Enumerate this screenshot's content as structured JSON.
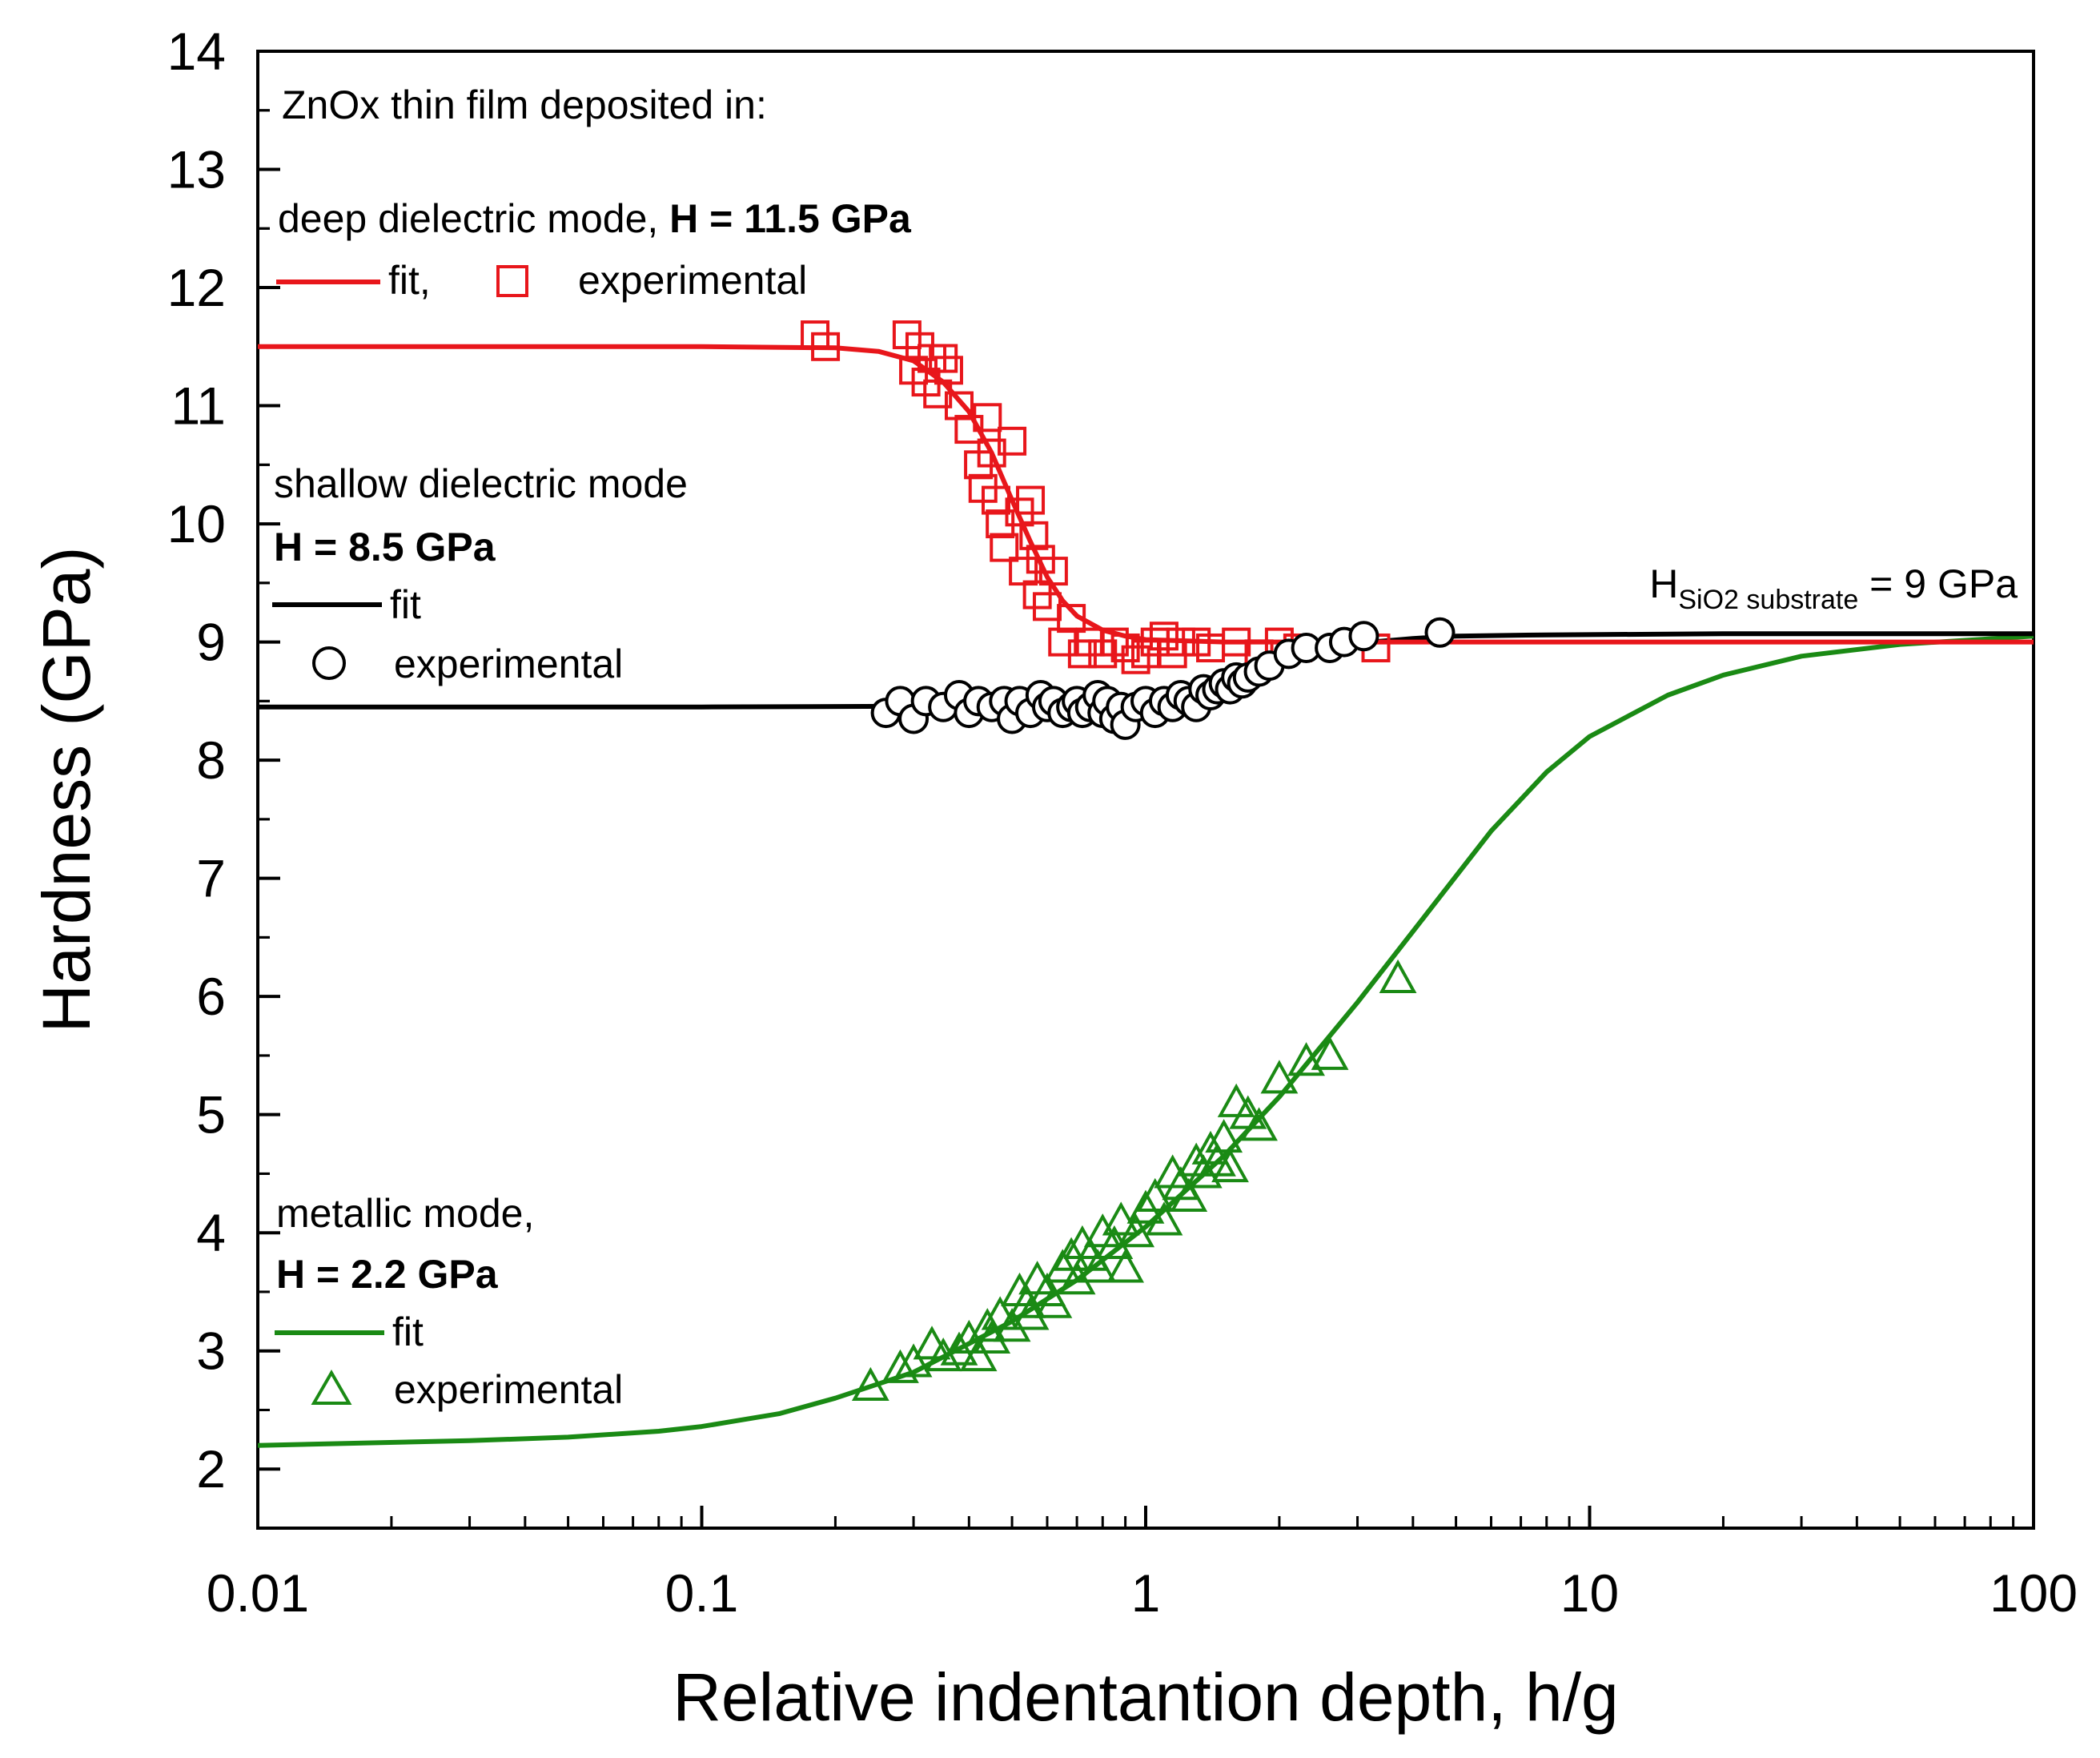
{
  "chart_data": {
    "type": "scatter",
    "title": "",
    "xlabel": "Relative indentantion depth, h/g",
    "ylabel": "Hardness (GPa)",
    "xscale": "log",
    "xlim": [
      0.01,
      100
    ],
    "ylim": [
      1.5,
      14
    ],
    "xticks": [
      0.01,
      0.1,
      1,
      10,
      100
    ],
    "xtick_labels": [
      "0.01",
      "0.1",
      "1",
      "10",
      "100"
    ],
    "yticks": [
      2,
      3,
      4,
      5,
      6,
      7,
      8,
      9,
      10,
      11,
      12,
      13,
      14
    ],
    "ytick_labels": [
      "2",
      "3",
      "4",
      "5",
      "6",
      "7",
      "8",
      "9",
      "10",
      "11",
      "12",
      "13",
      "14"
    ],
    "legend_header": "ZnOx thin film deposited in:",
    "substrate_annotation": {
      "main": "H",
      "subscript": "SiO2 substrate",
      "suffix": " = 9 GPa"
    },
    "series": [
      {
        "name": "deep dielectric mode",
        "color": "#e8161b",
        "marker": "square",
        "legend": {
          "title": "deep dielectric mode, ",
          "title_bold": "H = 11.5 GPa",
          "fit_label": "fit,",
          "exp_label": "experimental"
        },
        "fit": {
          "x": [
            0.01,
            0.1,
            0.2,
            0.25,
            0.3,
            0.35,
            0.4,
            0.45,
            0.5,
            0.55,
            0.6,
            0.65,
            0.7,
            0.8,
            0.9,
            1.0,
            1.5,
            2,
            5,
            100
          ],
          "y": [
            11.5,
            11.5,
            11.49,
            11.46,
            11.38,
            11.2,
            10.95,
            10.6,
            10.2,
            9.85,
            9.55,
            9.35,
            9.22,
            9.1,
            9.05,
            9.02,
            9.0,
            9.0,
            9.0,
            9.0
          ]
        },
        "experimental": {
          "x": [
            0.18,
            0.19,
            0.29,
            0.3,
            0.31,
            0.32,
            0.33,
            0.34,
            0.35,
            0.36,
            0.38,
            0.4,
            0.42,
            0.43,
            0.44,
            0.45,
            0.46,
            0.47,
            0.48,
            0.5,
            0.52,
            0.53,
            0.55,
            0.56,
            0.57,
            0.58,
            0.6,
            0.62,
            0.65,
            0.68,
            0.72,
            0.75,
            0.8,
            0.85,
            0.9,
            0.95,
            1.0,
            1.05,
            1.1,
            1.15,
            1.2,
            1.3,
            1.4,
            1.6,
            1.8,
            2.0,
            2.2,
            3.3
          ],
          "y": [
            11.6,
            11.5,
            11.6,
            11.3,
            11.5,
            11.2,
            11.4,
            11.1,
            11.4,
            11.3,
            11.0,
            10.8,
            10.5,
            10.3,
            10.9,
            10.6,
            10.2,
            10.0,
            9.8,
            10.7,
            10.1,
            9.6,
            10.2,
            9.9,
            9.4,
            9.7,
            9.3,
            9.6,
            9.0,
            9.2,
            8.9,
            9.0,
            8.9,
            9.0,
            8.95,
            8.85,
            8.9,
            9.0,
            9.05,
            8.9,
            9.0,
            9.0,
            8.95,
            9.0,
            8.9,
            9.0,
            8.95,
            8.95
          ]
        }
      },
      {
        "name": "shallow dielectric mode",
        "color": "#000000",
        "marker": "circle",
        "legend": {
          "title": "shallow dielectric mode",
          "title_bold": "H = 8.5 GPa",
          "fit_label": "fit",
          "exp_label": "experimental"
        },
        "fit": {
          "x": [
            0.01,
            0.1,
            0.5,
            0.8,
            1.0,
            1.3,
            1.6,
            2.0,
            2.5,
            3.0,
            4.0,
            5.0,
            8.0,
            20,
            100
          ],
          "y": [
            8.45,
            8.45,
            8.46,
            8.48,
            8.5,
            8.58,
            8.68,
            8.82,
            8.93,
            8.99,
            9.03,
            9.05,
            9.06,
            9.07,
            9.07
          ]
        },
        "experimental": {
          "x": [
            0.26,
            0.28,
            0.3,
            0.32,
            0.35,
            0.38,
            0.4,
            0.42,
            0.45,
            0.48,
            0.5,
            0.52,
            0.55,
            0.58,
            0.6,
            0.62,
            0.65,
            0.68,
            0.7,
            0.72,
            0.75,
            0.78,
            0.8,
            0.82,
            0.85,
            0.88,
            0.9,
            0.95,
            1.0,
            1.05,
            1.1,
            1.15,
            1.2,
            1.25,
            1.3,
            1.35,
            1.4,
            1.45,
            1.5,
            1.55,
            1.6,
            1.65,
            1.7,
            1.8,
            1.9,
            2.1,
            2.3,
            2.6,
            2.8,
            3.1,
            4.6
          ],
          "y": [
            8.4,
            8.5,
            8.35,
            8.5,
            8.45,
            8.55,
            8.4,
            8.5,
            8.45,
            8.5,
            8.35,
            8.5,
            8.4,
            8.55,
            8.45,
            8.5,
            8.4,
            8.45,
            8.5,
            8.4,
            8.45,
            8.55,
            8.4,
            8.5,
            8.35,
            8.45,
            8.3,
            8.45,
            8.5,
            8.4,
            8.5,
            8.45,
            8.55,
            8.5,
            8.45,
            8.6,
            8.55,
            8.6,
            8.65,
            8.6,
            8.7,
            8.65,
            8.7,
            8.75,
            8.8,
            8.9,
            8.95,
            8.95,
            9.0,
            9.05,
            9.08
          ]
        }
      },
      {
        "name": "metallic mode",
        "color": "#1a8a14",
        "marker": "triangle",
        "legend": {
          "title": "metallic mode,",
          "title_bold": "H = 2.2 GPa",
          "fit_label": "fit",
          "exp_label": "experimental"
        },
        "fit": {
          "x": [
            0.01,
            0.03,
            0.05,
            0.08,
            0.1,
            0.15,
            0.2,
            0.3,
            0.5,
            0.7,
            1.0,
            1.5,
            2.0,
            3.0,
            4.0,
            6.0,
            8.0,
            10,
            15,
            20,
            30,
            50,
            100
          ],
          "y": [
            2.2,
            2.24,
            2.27,
            2.32,
            2.36,
            2.47,
            2.6,
            2.82,
            3.25,
            3.6,
            4.05,
            4.65,
            5.15,
            5.95,
            6.55,
            7.4,
            7.9,
            8.2,
            8.55,
            8.72,
            8.88,
            8.98,
            9.05
          ]
        },
        "experimental": {
          "x": [
            0.24,
            0.28,
            0.3,
            0.33,
            0.35,
            0.38,
            0.4,
            0.42,
            0.44,
            0.45,
            0.47,
            0.5,
            0.52,
            0.54,
            0.55,
            0.57,
            0.6,
            0.62,
            0.65,
            0.68,
            0.7,
            0.72,
            0.75,
            0.78,
            0.8,
            0.85,
            0.88,
            0.9,
            0.95,
            1.0,
            1.05,
            1.1,
            1.15,
            1.2,
            1.25,
            1.3,
            1.35,
            1.4,
            1.45,
            1.5,
            1.55,
            1.6,
            1.7,
            1.8,
            2.0,
            2.3,
            2.6,
            3.7
          ],
          "y": [
            2.7,
            2.85,
            2.9,
            3.05,
            2.95,
            3.0,
            3.1,
            2.95,
            3.2,
            3.1,
            3.3,
            3.2,
            3.5,
            3.4,
            3.3,
            3.6,
            3.5,
            3.4,
            3.7,
            3.8,
            3.6,
            3.9,
            3.8,
            3.7,
            4.0,
            3.9,
            4.1,
            3.7,
            4.0,
            4.2,
            4.3,
            4.1,
            4.5,
            4.4,
            4.3,
            4.6,
            4.5,
            4.7,
            4.6,
            4.8,
            4.55,
            5.1,
            5.0,
            4.9,
            5.3,
            5.45,
            5.5,
            6.15
          ]
        }
      }
    ]
  }
}
